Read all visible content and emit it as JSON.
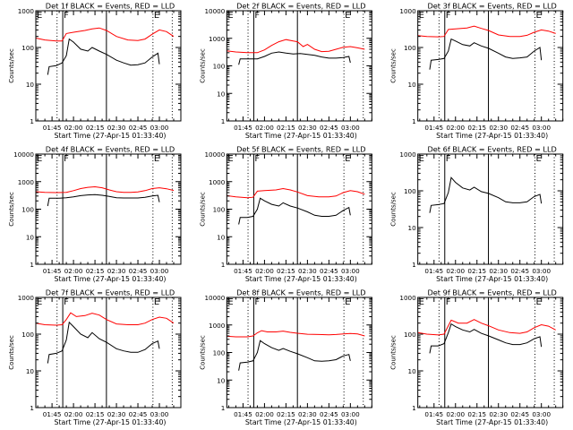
{
  "figure": {
    "xlabel": "Start Time (27-Apr-15 01:33:40)",
    "ylabel": "Counts/sec",
    "x_tick_labels": [
      "01:45",
      "02:00",
      "02:15",
      "02:30",
      "02:45",
      "03:00"
    ],
    "x_ticks_min": [
      105,
      120,
      135,
      150,
      165,
      180
    ],
    "x_start_min": 93.67,
    "x_end_min": 195,
    "markers": {
      "dotted_min": [
        108.5,
        null
      ],
      "solid_min": [
        112.5,
        143
      ],
      "dotted2_min": [
        175.5,
        189
      ],
      "labels": [
        {
          "text": "E",
          "at_min": 93.67
        },
        {
          "text": "F",
          "at_min": 112.5
        },
        {
          "text": "E",
          "at_min": 175.5
        }
      ]
    },
    "colors": {
      "events": "#000000",
      "lld": "#ff0000"
    }
  },
  "chart_data": [
    {
      "type": "line",
      "title": "Det 1f BLACK = Events, RED = LLD",
      "xlabel": "Start Time (27-Apr-15 01:33:40)",
      "ylabel": "Counts/sec",
      "yscale": "log",
      "ylim": [
        1,
        1000
      ],
      "ytick_labels": [
        "1",
        "10",
        "100",
        "1000"
      ],
      "series": [
        {
          "name": "LLD",
          "color": "#ff0000",
          "x_min": [
            93.67,
            100,
            108,
            112,
            115,
            120,
            128,
            133,
            138,
            143,
            150,
            158,
            165,
            170,
            175,
            180,
            185,
            190
          ],
          "values": [
            180,
            160,
            150,
            150,
            240,
            260,
            290,
            320,
            340,
            290,
            200,
            160,
            155,
            170,
            230,
            300,
            270,
            200
          ]
        },
        {
          "name": "Events",
          "color": "#000000",
          "x_min": [
            102,
            103,
            108,
            112,
            115,
            117,
            120,
            125,
            130,
            133,
            138,
            143,
            150,
            155,
            160,
            165,
            170,
            175,
            179,
            180
          ],
          "values": [
            18,
            30,
            32,
            38,
            60,
            170,
            140,
            90,
            80,
            100,
            80,
            65,
            45,
            38,
            33,
            34,
            38,
            55,
            70,
            35
          ]
        }
      ]
    },
    {
      "type": "line",
      "title": "Det 2f BLACK = Events, RED = LLD",
      "xlabel": "Start Time (27-Apr-15 01:33:40)",
      "ylabel": "Counts/sec",
      "yscale": "log",
      "ylim": [
        1,
        10000
      ],
      "ytick_labels": [
        "1",
        "10",
        "100",
        "1000",
        "10000"
      ],
      "series": [
        {
          "name": "LLD",
          "color": "#ff0000",
          "x_min": [
            93.67,
            100,
            108,
            115,
            120,
            125,
            130,
            135,
            140,
            143,
            147,
            150,
            155,
            160,
            165,
            170,
            175,
            180,
            185,
            190
          ],
          "values": [
            350,
            320,
            300,
            300,
            380,
            550,
            750,
            900,
            800,
            750,
            500,
            600,
            400,
            330,
            340,
            400,
            470,
            500,
            450,
            400
          ]
        },
        {
          "name": "Events",
          "color": "#000000",
          "x_min": [
            102,
            103,
            110,
            115,
            120,
            125,
            130,
            135,
            140,
            145,
            150,
            155,
            160,
            165,
            170,
            175,
            179,
            180
          ],
          "values": [
            110,
            180,
            180,
            180,
            220,
            290,
            320,
            290,
            270,
            280,
            260,
            240,
            210,
            190,
            190,
            200,
            220,
            130
          ]
        }
      ]
    },
    {
      "type": "line",
      "title": "Det 3f BLACK = Events, RED = LLD",
      "xlabel": "Start Time (27-Apr-15 01:33:40)",
      "ylabel": "Counts/sec",
      "yscale": "log",
      "ylim": [
        1,
        1000
      ],
      "ytick_labels": [
        "1",
        "10",
        "100",
        "1000"
      ],
      "series": [
        {
          "name": "LLD",
          "color": "#ff0000",
          "x_min": [
            93.67,
            100,
            108,
            112,
            115,
            120,
            128,
            133,
            138,
            143,
            150,
            158,
            165,
            170,
            175,
            180,
            185,
            190
          ],
          "values": [
            210,
            200,
            195,
            200,
            310,
            320,
            340,
            380,
            330,
            290,
            220,
            200,
            200,
            215,
            260,
            300,
            280,
            240
          ]
        },
        {
          "name": "Events",
          "color": "#000000",
          "x_min": [
            102,
            103,
            108,
            112,
            115,
            117,
            120,
            125,
            130,
            133,
            138,
            143,
            150,
            155,
            160,
            165,
            170,
            175,
            179,
            180
          ],
          "values": [
            25,
            45,
            47,
            50,
            80,
            170,
            150,
            120,
            110,
            135,
            110,
            95,
            70,
            55,
            50,
            52,
            55,
            80,
            100,
            45
          ]
        }
      ]
    },
    {
      "type": "line",
      "title": "Det 4f BLACK = Events, RED = LLD",
      "xlabel": "Start Time (27-Apr-15 01:33:40)",
      "ylabel": "Counts/sec",
      "yscale": "log",
      "ylim": [
        1,
        10000
      ],
      "ytick_labels": [
        "1",
        "10",
        "100",
        "1000",
        "10000"
      ],
      "series": [
        {
          "name": "LLD",
          "color": "#ff0000",
          "x_min": [
            93.67,
            100,
            108,
            115,
            120,
            125,
            130,
            135,
            140,
            145,
            150,
            155,
            160,
            165,
            170,
            175,
            180,
            185,
            190
          ],
          "values": [
            430,
            410,
            400,
            410,
            470,
            560,
            620,
            650,
            600,
            500,
            430,
            410,
            410,
            420,
            470,
            560,
            600,
            550,
            480
          ]
        },
        {
          "name": "Events",
          "color": "#000000",
          "x_min": [
            102,
            103,
            110,
            115,
            120,
            125,
            130,
            135,
            140,
            145,
            150,
            155,
            160,
            165,
            170,
            175,
            179,
            180
          ],
          "values": [
            130,
            250,
            250,
            260,
            280,
            310,
            330,
            340,
            320,
            290,
            260,
            255,
            255,
            255,
            270,
            300,
            320,
            180
          ]
        }
      ]
    },
    {
      "type": "line",
      "title": "Det 5f BLACK = Events, RED = LLD",
      "xlabel": "Start Time (27-Apr-15 01:33:40)",
      "ylabel": "Counts/sec",
      "yscale": "log",
      "ylim": [
        1,
        10000
      ],
      "ytick_labels": [
        "1",
        "10",
        "100",
        "1000",
        "10000"
      ],
      "series": [
        {
          "name": "LLD",
          "color": "#ff0000",
          "x_min": [
            93.67,
            100,
            108,
            112,
            115,
            120,
            128,
            133,
            138,
            143,
            150,
            158,
            165,
            170,
            175,
            180,
            185,
            190
          ],
          "values": [
            310,
            280,
            260,
            270,
            450,
            470,
            500,
            560,
            500,
            420,
            310,
            280,
            280,
            300,
            400,
            470,
            430,
            350
          ]
        },
        {
          "name": "Events",
          "color": "#000000",
          "x_min": [
            102,
            103,
            108,
            112,
            115,
            117,
            120,
            125,
            130,
            133,
            138,
            143,
            150,
            155,
            160,
            165,
            170,
            175,
            179,
            180
          ],
          "values": [
            28,
            50,
            50,
            55,
            100,
            250,
            200,
            150,
            130,
            170,
            130,
            110,
            80,
            60,
            55,
            55,
            60,
            90,
            115,
            60
          ]
        }
      ]
    },
    {
      "type": "line",
      "title": "Det 6f BLACK = Events, RED = LLD",
      "xlabel": "Start Time (27-Apr-15 01:33:40)",
      "ylabel": "Counts/sec",
      "yscale": "log",
      "ylim": [
        1,
        1000
      ],
      "ytick_labels": [
        "1",
        "10",
        "100",
        "1000"
      ],
      "series": [
        {
          "name": "Events",
          "color": "#000000",
          "x_min": [
            102,
            103,
            108,
            112,
            115,
            117,
            120,
            125,
            130,
            133,
            138,
            143,
            150,
            155,
            160,
            165,
            170,
            175,
            179,
            180
          ],
          "values": [
            25,
            40,
            42,
            45,
            90,
            230,
            170,
            120,
            105,
            125,
            95,
            85,
            65,
            50,
            47,
            47,
            50,
            70,
            80,
            45
          ]
        }
      ]
    },
    {
      "type": "line",
      "title": "Det 7f BLACK = Events, RED = LLD",
      "xlabel": "Start Time (27-Apr-15 01:33:40)",
      "ylabel": "Counts/sec",
      "yscale": "log",
      "ylim": [
        1,
        1000
      ],
      "ytick_labels": [
        "1",
        "10",
        "100",
        "1000"
      ],
      "series": [
        {
          "name": "LLD",
          "color": "#ff0000",
          "x_min": [
            93.67,
            100,
            108,
            112,
            115,
            118,
            122,
            128,
            133,
            138,
            143,
            150,
            158,
            165,
            170,
            175,
            180,
            185,
            190
          ],
          "values": [
            200,
            180,
            175,
            180,
            250,
            380,
            300,
            320,
            370,
            330,
            250,
            190,
            180,
            180,
            200,
            250,
            290,
            270,
            200
          ]
        },
        {
          "name": "Events",
          "color": "#000000",
          "x_min": [
            102,
            103,
            108,
            112,
            115,
            117,
            120,
            125,
            130,
            133,
            138,
            143,
            150,
            155,
            160,
            165,
            170,
            175,
            179,
            180
          ],
          "values": [
            16,
            28,
            30,
            35,
            70,
            210,
            160,
            100,
            80,
            110,
            75,
            60,
            40,
            35,
            32,
            32,
            38,
            55,
            65,
            40
          ]
        }
      ]
    },
    {
      "type": "line",
      "title": "Det 8f BLACK = Events, RED = LLD",
      "xlabel": "Start Time (27-Apr-15 01:33:40)",
      "ylabel": "Counts/sec",
      "yscale": "log",
      "ylim": [
        1,
        10000
      ],
      "ytick_labels": [
        "1",
        "10",
        "100",
        "1000",
        "10000"
      ],
      "series": [
        {
          "name": "LLD",
          "color": "#ff0000",
          "x_min": [
            93.67,
            100,
            108,
            112,
            115,
            118,
            122,
            128,
            133,
            138,
            143,
            150,
            158,
            165,
            170,
            175,
            180,
            185,
            190
          ],
          "values": [
            390,
            370,
            370,
            400,
            520,
            620,
            560,
            560,
            600,
            540,
            500,
            460,
            450,
            440,
            450,
            470,
            490,
            470,
            400
          ]
        },
        {
          "name": "Events",
          "color": "#000000",
          "x_min": [
            102,
            103,
            108,
            112,
            115,
            117,
            120,
            125,
            130,
            133,
            138,
            143,
            150,
            155,
            160,
            165,
            170,
            175,
            179,
            180
          ],
          "values": [
            22,
            42,
            45,
            50,
            100,
            270,
            210,
            150,
            120,
            140,
            110,
            90,
            65,
            50,
            48,
            50,
            55,
            75,
            85,
            50
          ]
        }
      ]
    },
    {
      "type": "line",
      "title": "Det 9f BLACK = Events, RED = LLD",
      "xlabel": "Start Time (27-Apr-15 01:33:40)",
      "ylabel": "Counts/sec",
      "yscale": "log",
      "ylim": [
        1,
        1000
      ],
      "ytick_labels": [
        "1",
        "10",
        "100",
        "1000"
      ],
      "series": [
        {
          "name": "LLD",
          "color": "#ff0000",
          "x_min": [
            93.67,
            100,
            108,
            112,
            115,
            117,
            122,
            128,
            133,
            138,
            143,
            150,
            158,
            165,
            170,
            175,
            180,
            185,
            190
          ],
          "values": [
            110,
            100,
            95,
            100,
            170,
            240,
            200,
            200,
            250,
            200,
            170,
            130,
            110,
            105,
            115,
            150,
            180,
            165,
            130
          ]
        },
        {
          "name": "Events",
          "color": "#000000",
          "x_min": [
            102,
            103,
            108,
            112,
            115,
            117,
            120,
            125,
            130,
            133,
            138,
            143,
            150,
            155,
            160,
            165,
            170,
            175,
            179,
            180
          ],
          "values": [
            30,
            48,
            48,
            55,
            110,
            190,
            160,
            130,
            115,
            135,
            105,
            90,
            70,
            58,
            52,
            52,
            58,
            75,
            85,
            45
          ]
        }
      ]
    }
  ]
}
